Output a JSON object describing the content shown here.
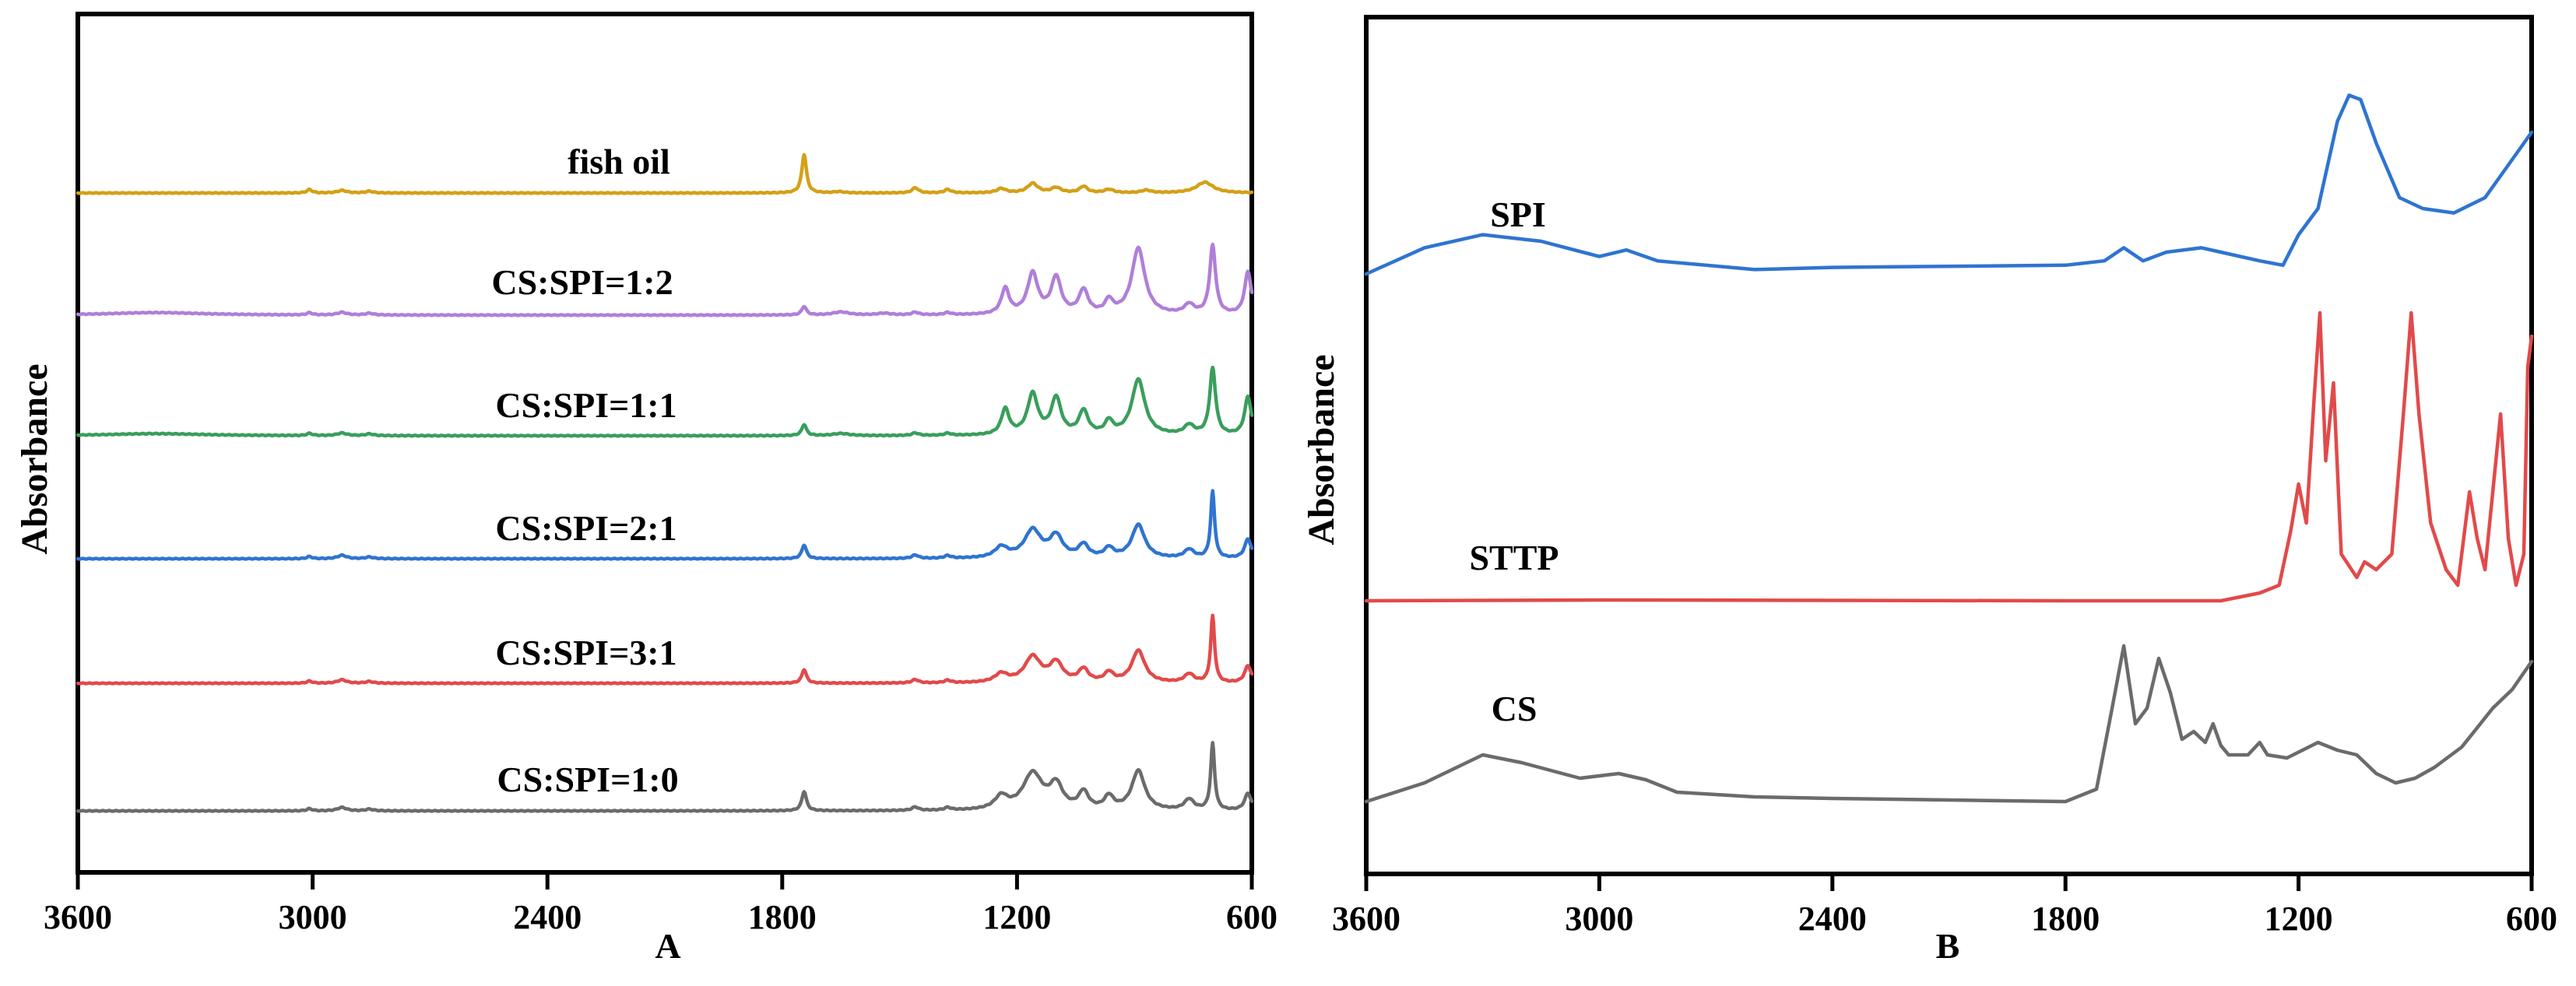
{
  "chart_data": [
    {
      "type": "line",
      "panel_label": "A",
      "ylabel": "Absorbance",
      "xlabel": "",
      "xlim": [
        3600,
        600
      ],
      "x_reversed": true,
      "xticks": [
        3600,
        3000,
        2400,
        1800,
        1200,
        600
      ],
      "grid": false,
      "series": [
        {
          "name": "fish oil",
          "color": "#d4a017",
          "baseline": 1.0,
          "peaks": [
            [
              3008,
              0.08,
              8
            ],
            [
              2925,
              0.06,
              14
            ],
            [
              2855,
              0.04,
              12
            ],
            [
              1744,
              0.9,
              7
            ],
            [
              1655,
              0.03,
              15
            ],
            [
              1460,
              0.12,
              10
            ],
            [
              1377,
              0.08,
              10
            ],
            [
              1240,
              0.1,
              14
            ],
            [
              1160,
              0.22,
              16
            ],
            [
              1100,
              0.12,
              15
            ],
            [
              1030,
              0.15,
              12
            ],
            [
              965,
              0.08,
              14
            ],
            [
              870,
              0.06,
              15
            ],
            [
              720,
              0.25,
              26
            ]
          ]
        },
        {
          "name": "CS:SPI=1:2",
          "color": "#b07fd9",
          "baseline": 0.0,
          "peaks": [
            [
              3400,
              0.06,
              150
            ],
            [
              3008,
              0.05,
              8
            ],
            [
              2925,
              0.06,
              14
            ],
            [
              2855,
              0.04,
              12
            ],
            [
              1744,
              0.2,
              7
            ],
            [
              1650,
              0.07,
              25
            ],
            [
              1540,
              0.04,
              20
            ],
            [
              1460,
              0.06,
              10
            ],
            [
              1377,
              0.05,
              10
            ],
            [
              1230,
              0.6,
              12
            ],
            [
              1160,
              0.95,
              16
            ],
            [
              1100,
              0.85,
              15
            ],
            [
              1030,
              0.55,
              14
            ],
            [
              965,
              0.3,
              12
            ],
            [
              890,
              1.55,
              20
            ],
            [
              760,
              0.22,
              15
            ],
            [
              700,
              1.6,
              9
            ],
            [
              610,
              1.0,
              10
            ]
          ]
        },
        {
          "name": "CS:SPI=1:1",
          "color": "#3a9e5c",
          "baseline": 0.0,
          "peaks": [
            [
              3400,
              0.05,
              150
            ],
            [
              3008,
              0.05,
              8
            ],
            [
              2925,
              0.06,
              14
            ],
            [
              2855,
              0.04,
              12
            ],
            [
              1744,
              0.26,
              7
            ],
            [
              1650,
              0.05,
              25
            ],
            [
              1460,
              0.06,
              10
            ],
            [
              1377,
              0.05,
              10
            ],
            [
              1230,
              0.6,
              12
            ],
            [
              1160,
              0.95,
              16
            ],
            [
              1100,
              0.85,
              15
            ],
            [
              1030,
              0.55,
              14
            ],
            [
              965,
              0.3,
              12
            ],
            [
              890,
              1.3,
              20
            ],
            [
              760,
              0.22,
              15
            ],
            [
              700,
              1.55,
              9
            ],
            [
              610,
              0.9,
              10
            ]
          ]
        },
        {
          "name": "CS:SPI=2:1",
          "color": "#2f74d0",
          "baseline": 0.0,
          "peaks": [
            [
              3008,
              0.05,
              8
            ],
            [
              2925,
              0.08,
              14
            ],
            [
              2855,
              0.04,
              12
            ],
            [
              1744,
              0.32,
              7
            ],
            [
              1460,
              0.08,
              10
            ],
            [
              1377,
              0.06,
              10
            ],
            [
              1240,
              0.25,
              20
            ],
            [
              1160,
              0.65,
              25
            ],
            [
              1100,
              0.5,
              20
            ],
            [
              1030,
              0.3,
              15
            ],
            [
              965,
              0.22,
              14
            ],
            [
              890,
              0.78,
              20
            ],
            [
              760,
              0.2,
              15
            ],
            [
              700,
              1.55,
              6
            ],
            [
              610,
              0.45,
              10
            ]
          ]
        },
        {
          "name": "CS:SPI=3:1",
          "color": "#e24a4a",
          "baseline": 0.0,
          "peaks": [
            [
              3008,
              0.05,
              8
            ],
            [
              2925,
              0.08,
              14
            ],
            [
              2855,
              0.04,
              12
            ],
            [
              1744,
              0.32,
              7
            ],
            [
              1460,
              0.08,
              10
            ],
            [
              1377,
              0.06,
              10
            ],
            [
              1240,
              0.2,
              20
            ],
            [
              1160,
              0.6,
              25
            ],
            [
              1100,
              0.45,
              20
            ],
            [
              1030,
              0.3,
              15
            ],
            [
              965,
              0.22,
              14
            ],
            [
              890,
              0.75,
              20
            ],
            [
              760,
              0.2,
              15
            ],
            [
              700,
              1.55,
              6
            ],
            [
              610,
              0.4,
              10
            ]
          ]
        },
        {
          "name": "CS:SPI=1:0",
          "color": "#6b6b6b",
          "baseline": 0.0,
          "peaks": [
            [
              3008,
              0.05,
              8
            ],
            [
              2925,
              0.08,
              14
            ],
            [
              2855,
              0.04,
              12
            ],
            [
              1744,
              0.45,
              7
            ],
            [
              1460,
              0.08,
              10
            ],
            [
              1377,
              0.06,
              10
            ],
            [
              1240,
              0.3,
              20
            ],
            [
              1160,
              0.85,
              30
            ],
            [
              1100,
              0.55,
              20
            ],
            [
              1030,
              0.4,
              15
            ],
            [
              965,
              0.3,
              14
            ],
            [
              890,
              0.92,
              20
            ],
            [
              760,
              0.25,
              15
            ],
            [
              700,
              1.55,
              6
            ],
            [
              610,
              0.4,
              10
            ]
          ]
        }
      ]
    },
    {
      "type": "line",
      "panel_label": "B",
      "ylabel": "Absorbance",
      "xlabel": "",
      "xlim": [
        3600,
        600
      ],
      "x_reversed": true,
      "xticks": [
        3600,
        3000,
        2400,
        1800,
        1200,
        600
      ],
      "grid": false,
      "series": [
        {
          "name": "SPI",
          "color": "#2f74d0",
          "trace": [
            [
              3600,
              0.0
            ],
            [
              3450,
              0.12
            ],
            [
              3300,
              0.18
            ],
            [
              3150,
              0.15
            ],
            [
              3000,
              0.08
            ],
            [
              2930,
              0.11
            ],
            [
              2850,
              0.06
            ],
            [
              2600,
              0.02
            ],
            [
              2400,
              0.03
            ],
            [
              1800,
              0.04
            ],
            [
              1700,
              0.06
            ],
            [
              1650,
              0.12
            ],
            [
              1600,
              0.06
            ],
            [
              1540,
              0.1
            ],
            [
              1450,
              0.12
            ],
            [
              1400,
              0.1
            ],
            [
              1300,
              0.06
            ],
            [
              1240,
              0.04
            ],
            [
              1200,
              0.18
            ],
            [
              1150,
              0.3
            ],
            [
              1100,
              0.7
            ],
            [
              1070,
              0.82
            ],
            [
              1040,
              0.8
            ],
            [
              1000,
              0.6
            ],
            [
              940,
              0.35
            ],
            [
              880,
              0.3
            ],
            [
              800,
              0.28
            ],
            [
              720,
              0.35
            ],
            [
              660,
              0.5
            ],
            [
              620,
              0.6
            ],
            [
              600,
              0.65
            ]
          ]
        },
        {
          "name": "STTP",
          "color": "#e24a4a",
          "trace": [
            [
              3600,
              0.0
            ],
            [
              3000,
              0.005
            ],
            [
              1800,
              0.0
            ],
            [
              1400,
              0.0
            ],
            [
              1300,
              0.05
            ],
            [
              1250,
              0.1
            ],
            [
              1220,
              0.45
            ],
            [
              1200,
              0.75
            ],
            [
              1180,
              0.5
            ],
            [
              1160,
              1.3
            ],
            [
              1145,
              1.85
            ],
            [
              1130,
              0.9
            ],
            [
              1110,
              1.4
            ],
            [
              1090,
              0.3
            ],
            [
              1050,
              0.15
            ],
            [
              1030,
              0.25
            ],
            [
              1000,
              0.2
            ],
            [
              960,
              0.3
            ],
            [
              930,
              1.2
            ],
            [
              910,
              1.85
            ],
            [
              890,
              1.2
            ],
            [
              860,
              0.5
            ],
            [
              820,
              0.2
            ],
            [
              790,
              0.1
            ],
            [
              760,
              0.7
            ],
            [
              740,
              0.4
            ],
            [
              720,
              0.2
            ],
            [
              680,
              1.2
            ],
            [
              660,
              0.4
            ],
            [
              640,
              0.1
            ],
            [
              620,
              0.3
            ],
            [
              610,
              1.5
            ],
            [
              600,
              1.7
            ]
          ]
        },
        {
          "name": "CS",
          "color": "#6b6b6b",
          "trace": [
            [
              3600,
              0.0
            ],
            [
              3450,
              0.12
            ],
            [
              3300,
              0.3
            ],
            [
              3200,
              0.25
            ],
            [
              3050,
              0.15
            ],
            [
              2950,
              0.18
            ],
            [
              2880,
              0.14
            ],
            [
              2800,
              0.06
            ],
            [
              2600,
              0.03
            ],
            [
              2400,
              0.02
            ],
            [
              1800,
              0.0
            ],
            [
              1720,
              0.08
            ],
            [
              1680,
              0.6
            ],
            [
              1650,
              1.0
            ],
            [
              1620,
              0.5
            ],
            [
              1590,
              0.6
            ],
            [
              1560,
              0.92
            ],
            [
              1530,
              0.7
            ],
            [
              1500,
              0.4
            ],
            [
              1470,
              0.45
            ],
            [
              1440,
              0.38
            ],
            [
              1420,
              0.5
            ],
            [
              1400,
              0.36
            ],
            [
              1380,
              0.3
            ],
            [
              1330,
              0.3
            ],
            [
              1300,
              0.38
            ],
            [
              1280,
              0.3
            ],
            [
              1230,
              0.28
            ],
            [
              1150,
              0.38
            ],
            [
              1100,
              0.33
            ],
            [
              1050,
              0.3
            ],
            [
              1000,
              0.18
            ],
            [
              950,
              0.12
            ],
            [
              900,
              0.15
            ],
            [
              850,
              0.22
            ],
            [
              780,
              0.35
            ],
            [
              700,
              0.6
            ],
            [
              650,
              0.72
            ],
            [
              600,
              0.9
            ]
          ]
        }
      ]
    }
  ]
}
